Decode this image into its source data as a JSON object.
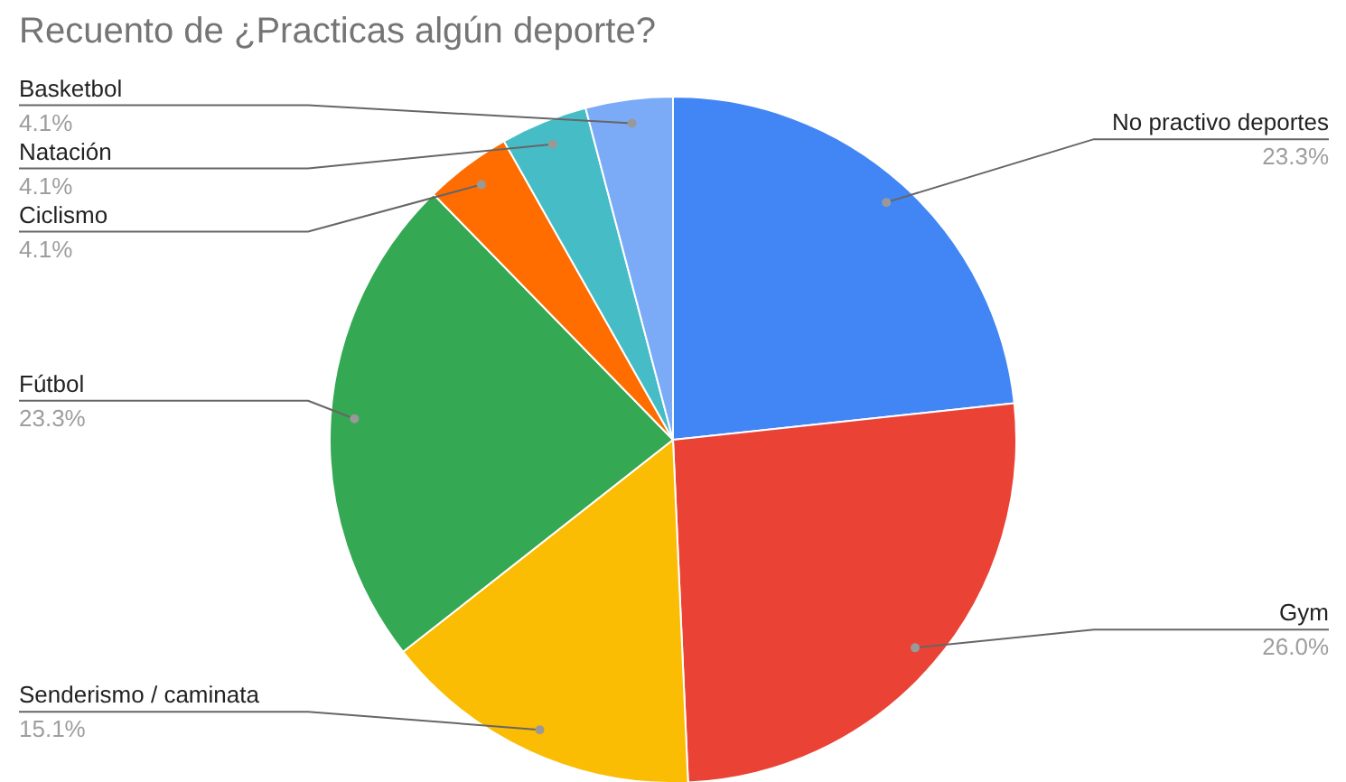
{
  "chart_data": {
    "type": "pie",
    "title": "Recuento de ¿Practicas algún deporte?",
    "categories": [
      "No practivo deportes",
      "Gym",
      "Senderismo / caminata",
      "Fútbol",
      "Ciclismo",
      "Natación",
      "Basketbol"
    ],
    "values": [
      23.3,
      26.0,
      15.1,
      23.3,
      4.1,
      4.1,
      4.1
    ],
    "colors": [
      "#4285f4",
      "#ea4335",
      "#fbbc04",
      "#34a853",
      "#ff6d01",
      "#46bdc6",
      "#7baaf7"
    ],
    "value_labels": [
      "23.3%",
      "26.0%",
      "15.1%",
      "23.3%",
      "4.1%",
      "4.1%",
      "4.1%"
    ]
  }
}
